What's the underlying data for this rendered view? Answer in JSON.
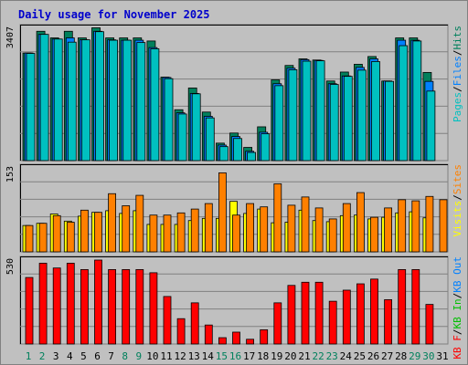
{
  "title": "Daily usage for November 2025",
  "colors": {
    "background": "#c0c0c0",
    "panel": "#c0c0c0",
    "grid": "#808080",
    "title": "#0000cc",
    "hits": "#00805c",
    "files": "#0080ff",
    "pages": "#00c0c0",
    "sites": "#ff8000",
    "visits": "#ffff00",
    "kbin": "#00c000",
    "kbf": "#ff0000",
    "kbout": "#0080ff",
    "weekend_day": "#00805c",
    "weekday": "#000000"
  },
  "chart_data": [
    {
      "type": "bar",
      "name": "hits-files-pages",
      "y_max_label": "3407",
      "ylim": [
        0,
        3407
      ],
      "legend": [
        "Pages",
        "/",
        "Files",
        "/",
        "Hits"
      ],
      "categories": [
        "1",
        "2",
        "3",
        "4",
        "5",
        "6",
        "7",
        "8",
        "9",
        "10",
        "11",
        "12",
        "13",
        "14",
        "15",
        "16",
        "17",
        "18",
        "19",
        "20",
        "21",
        "22",
        "23",
        "24",
        "25",
        "26",
        "27",
        "28",
        "29",
        "30",
        "31"
      ],
      "series": [
        {
          "name": "Hits",
          "values": [
            2770,
            3330,
            3160,
            3330,
            3160,
            3420,
            3160,
            3160,
            3160,
            3080,
            2150,
            1310,
            1870,
            1250,
            450,
            710,
            340,
            870,
            2080,
            2450,
            2620,
            2590,
            2050,
            2280,
            2480,
            2680,
            2050,
            3160,
            3160,
            2270,
            0
          ]
        },
        {
          "name": "Files",
          "values": [
            2770,
            3250,
            3130,
            3160,
            3110,
            3330,
            3110,
            3100,
            3100,
            2910,
            2140,
            1230,
            1730,
            1140,
            400,
            620,
            240,
            730,
            1980,
            2380,
            2600,
            2580,
            1980,
            2180,
            2400,
            2620,
            2050,
            3100,
            3100,
            2040,
            0
          ]
        },
        {
          "name": "Pages",
          "values": [
            2760,
            3250,
            3130,
            3050,
            3110,
            3320,
            3100,
            3100,
            3040,
            2880,
            2110,
            1200,
            1720,
            1100,
            360,
            570,
            210,
            690,
            1930,
            2340,
            2560,
            2570,
            1960,
            2170,
            2330,
            2550,
            2040,
            2960,
            3080,
            1790,
            0
          ]
        }
      ]
    },
    {
      "type": "bar",
      "name": "visits-sites",
      "y_max_label": "153",
      "ylim": [
        0,
        153
      ],
      "legend": [
        "Visits",
        "/",
        "Sites"
      ],
      "categories": [
        "1",
        "2",
        "3",
        "4",
        "5",
        "6",
        "7",
        "8",
        "9",
        "10",
        "11",
        "12",
        "13",
        "14",
        "15",
        "16",
        "17",
        "18",
        "19",
        "20",
        "21",
        "22",
        "23",
        "24",
        "25",
        "26",
        "27",
        "28",
        "29",
        "30",
        "31"
      ],
      "series": [
        {
          "name": "Visits",
          "values": [
            48,
            52,
            69,
            56,
            65,
            72,
            75,
            70,
            75,
            50,
            50,
            50,
            57,
            61,
            61,
            92,
            70,
            78,
            53,
            54,
            76,
            57,
            55,
            66,
            67,
            60,
            63,
            71,
            73,
            62,
            0
          ]
        },
        {
          "name": "Sites",
          "values": [
            48,
            52,
            66,
            54,
            76,
            72,
            106,
            84,
            103,
            67,
            67,
            71,
            78,
            88,
            144,
            67,
            88,
            82,
            124,
            85,
            100,
            80,
            60,
            88,
            108,
            63,
            80,
            95,
            93,
            101,
            95
          ]
        }
      ]
    },
    {
      "type": "bar",
      "name": "kbytes",
      "y_max_label": "530",
      "ylim": [
        0,
        530
      ],
      "legend": [
        "KB F",
        "/",
        "KB In",
        "/",
        "KB Out"
      ],
      "categories": [
        "1",
        "2",
        "3",
        "4",
        "5",
        "6",
        "7",
        "8",
        "9",
        "10",
        "11",
        "12",
        "13",
        "14",
        "15",
        "16",
        "17",
        "18",
        "19",
        "20",
        "21",
        "22",
        "23",
        "24",
        "25",
        "26",
        "27",
        "28",
        "29",
        "30",
        "31"
      ],
      "series": [
        {
          "name": "KB F",
          "values": [
            420,
            510,
            480,
            510,
            470,
            530,
            470,
            470,
            470,
            450,
            300,
            160,
            260,
            120,
            40,
            75,
            30,
            90,
            260,
            370,
            390,
            390,
            270,
            340,
            380,
            410,
            280,
            470,
            470,
            250,
            0
          ]
        }
      ]
    }
  ],
  "x_labels": [
    "1",
    "2",
    "3",
    "4",
    "5",
    "6",
    "7",
    "8",
    "9",
    "10",
    "11",
    "12",
    "13",
    "14",
    "15",
    "16",
    "17",
    "18",
    "19",
    "20",
    "21",
    "22",
    "23",
    "24",
    "25",
    "26",
    "27",
    "28",
    "29",
    "30",
    "31"
  ],
  "weekend_days": [
    1,
    2,
    8,
    9,
    15,
    16,
    22,
    23,
    29,
    30
  ]
}
